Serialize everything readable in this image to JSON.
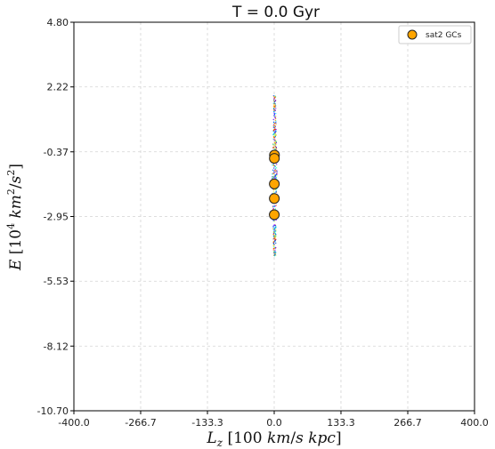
{
  "chart_data": {
    "type": "scatter",
    "title": "T = 0.0 Gyr",
    "xlabel": "L_z [100 km/s kpc]",
    "ylabel": "E [10^4 km^2/s^2]",
    "xlim": [
      -400.0,
      400.0
    ],
    "ylim": [
      -10.7,
      4.8
    ],
    "x_ticks": [
      "-400.0",
      "-266.7",
      "-133.3",
      "0.0",
      "133.3",
      "266.7",
      "400.0"
    ],
    "y_ticks": [
      "-10.70",
      "-8.12",
      "-5.53",
      "-2.95",
      "-0.37",
      "2.22",
      "4.80"
    ],
    "grid": true,
    "legend_position": "top-right",
    "series": [
      {
        "name": "sat2 GCs",
        "color": "#FFA500",
        "edge_color": "#222222",
        "x": [
          0.5,
          0.3,
          0.2,
          0.2,
          0.1
        ],
        "y": [
          -0.5,
          -0.63,
          -1.65,
          -2.23,
          -2.88
        ]
      }
    ],
    "background_stream": {
      "x": 0.0,
      "y_range": [
        -4.5,
        1.9
      ],
      "colors": [
        "#7f00ff",
        "#0040ff",
        "#00c8ff",
        "#40ffb0",
        "#c0ff40",
        "#ffb000",
        "#ff3000"
      ]
    }
  }
}
